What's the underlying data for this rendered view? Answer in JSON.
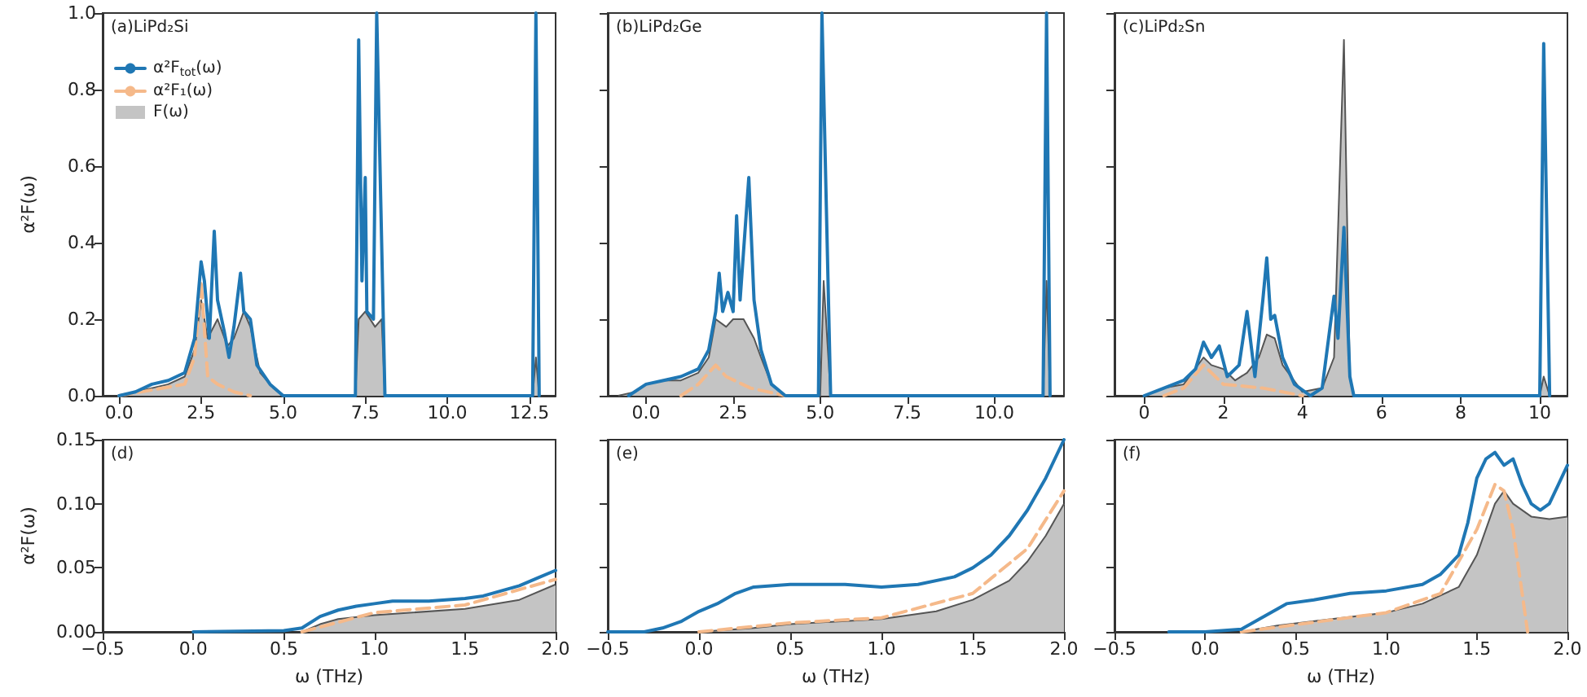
{
  "chart_data": [
    {
      "type": "line",
      "annotations": [
        "(a)LiPd₂Si"
      ],
      "ylabel": "α²F(ω)",
      "xlim": [
        -0.5,
        13.3
      ],
      "xticks": [
        {
          "value": 0,
          "label": "0.0"
        },
        {
          "value": 2.5,
          "label": "2.5"
        },
        {
          "value": 5,
          "label": "5.0"
        },
        {
          "value": 7.5,
          "label": "7.5"
        },
        {
          "value": 10,
          "label": "10.0"
        },
        {
          "value": 12.5,
          "label": "12.5"
        }
      ],
      "ylim": [
        0,
        1
      ],
      "yticks": [
        {
          "value": 0,
          "label": "0.0"
        },
        {
          "value": 0.2,
          "label": "0.2"
        },
        {
          "value": 0.4,
          "label": "0.4"
        },
        {
          "value": 0.6,
          "label": "0.6"
        },
        {
          "value": 0.8,
          "label": "0.8"
        },
        {
          "value": 1,
          "label": "1.0"
        }
      ],
      "legend": "top left",
      "series": [
        {
          "name": "α²F$_{tot}$(ω)",
          "color": "#1f77b4",
          "x": [
            0,
            0.5,
            1.0,
            1.5,
            2.0,
            2.3,
            2.5,
            2.6,
            2.75,
            2.9,
            3.0,
            3.2,
            3.35,
            3.5,
            3.7,
            3.8,
            4.0,
            4.2,
            4.6,
            5.0,
            7.2,
            7.3,
            7.4,
            7.5,
            7.55,
            7.75,
            7.85,
            8.1,
            12.6,
            12.7,
            12.8
          ],
          "values": [
            0,
            0.01,
            0.03,
            0.04,
            0.06,
            0.15,
            0.35,
            0.3,
            0.15,
            0.43,
            0.25,
            0.17,
            0.1,
            0.18,
            0.32,
            0.22,
            0.2,
            0.08,
            0.03,
            0,
            0,
            0.93,
            0.3,
            0.57,
            0.22,
            0.2,
            1.0,
            0,
            0,
            1.0,
            0
          ]
        },
        {
          "name": "α²F₁(ω)",
          "color": "#f5b98a",
          "line_style": "dashed",
          "x": [
            0,
            2.0,
            2.3,
            2.5,
            2.7,
            3.0,
            3.5,
            4.0
          ],
          "values": [
            0,
            0.03,
            0.1,
            0.3,
            0.05,
            0.03,
            0.01,
            0
          ]
        },
        {
          "name": "F(ω)",
          "type": "area",
          "color": "#c4c4c4",
          "x": [
            0,
            0.5,
            1.0,
            1.5,
            2.0,
            2.3,
            2.5,
            2.7,
            3.0,
            3.3,
            3.5,
            3.8,
            4.0,
            4.3,
            4.7,
            5.0,
            7.2,
            7.3,
            7.5,
            7.8,
            8.0,
            8.1,
            12.6,
            12.7,
            12.8
          ],
          "values": [
            0,
            0.01,
            0.02,
            0.03,
            0.05,
            0.12,
            0.25,
            0.15,
            0.2,
            0.13,
            0.15,
            0.22,
            0.18,
            0.06,
            0.02,
            0,
            0,
            0.2,
            0.22,
            0.18,
            0.2,
            0,
            0,
            0.1,
            0
          ]
        }
      ]
    },
    {
      "type": "line",
      "annotations": [
        "(b)LiPd₂Ge"
      ],
      "xlim": [
        -1.1,
        12.0
      ],
      "xticks": [
        {
          "value": 0,
          "label": "0.0"
        },
        {
          "value": 2.5,
          "label": "2.5"
        },
        {
          "value": 5,
          "label": "5.0"
        },
        {
          "value": 7.5,
          "label": "7.5"
        },
        {
          "value": 10,
          "label": "10.0"
        }
      ],
      "ylim": [
        0,
        1
      ],
      "yticks": [
        {
          "value": 0,
          "label": null
        },
        {
          "value": 0.2,
          "label": null
        },
        {
          "value": 0.4,
          "label": null
        },
        {
          "value": 0.6,
          "label": null
        },
        {
          "value": 0.8,
          "label": null
        },
        {
          "value": 1,
          "label": null
        }
      ],
      "tick_labels": "x",
      "series": [
        {
          "color": "#1f77b4",
          "x": [
            -0.5,
            0,
            0.5,
            1.0,
            1.5,
            1.8,
            2.0,
            2.1,
            2.2,
            2.35,
            2.5,
            2.6,
            2.7,
            2.95,
            3.1,
            3.3,
            3.6,
            4.0,
            4.95,
            5.05,
            5.3,
            11.4,
            11.5,
            11.6
          ],
          "values": [
            0,
            0.03,
            0.04,
            0.05,
            0.07,
            0.12,
            0.22,
            0.32,
            0.22,
            0.27,
            0.22,
            0.47,
            0.25,
            0.57,
            0.25,
            0.12,
            0.03,
            0,
            0,
            1.0,
            0,
            0,
            1.0,
            0
          ]
        },
        {
          "color": "#f5b98a",
          "line_style": "dashed",
          "x": [
            1.0,
            1.5,
            2.0,
            2.3,
            3.0,
            4.0
          ],
          "values": [
            0,
            0.03,
            0.08,
            0.05,
            0.02,
            0
          ]
        },
        {
          "type": "area",
          "color": "#c4c4c4",
          "x": [
            -0.8,
            -0.3,
            0,
            0.5,
            1.0,
            1.5,
            1.8,
            2.0,
            2.3,
            2.5,
            2.8,
            3.1,
            3.3,
            3.6,
            4.0,
            5.0,
            5.1,
            5.3,
            11.4,
            11.5,
            11.6
          ],
          "values": [
            0,
            0.01,
            0.03,
            0.04,
            0.04,
            0.06,
            0.1,
            0.2,
            0.18,
            0.2,
            0.2,
            0.15,
            0.1,
            0.03,
            0,
            0,
            0.3,
            0,
            0,
            0.3,
            0
          ]
        }
      ]
    },
    {
      "type": "line",
      "annotations": [
        "(c)LiPd₂Sn"
      ],
      "xlim": [
        -0.75,
        10.7
      ],
      "xticks": [
        0,
        2,
        4,
        6,
        8,
        10
      ],
      "ylim": [
        0,
        1
      ],
      "yticks": [
        {
          "value": 0,
          "label": null
        },
        {
          "value": 0.2,
          "label": null
        },
        {
          "value": 0.4,
          "label": null
        },
        {
          "value": 0.6,
          "label": null
        },
        {
          "value": 0.8,
          "label": null
        },
        {
          "value": 1,
          "label": null
        }
      ],
      "tick_labels": "x",
      "series": [
        {
          "color": "#1f77b4",
          "x": [
            0,
            0.5,
            1.0,
            1.3,
            1.5,
            1.7,
            1.9,
            2.1,
            2.4,
            2.6,
            2.8,
            3.0,
            3.1,
            3.2,
            3.3,
            3.5,
            3.8,
            4.2,
            4.5,
            4.8,
            4.9,
            5.05,
            5.2,
            5.3,
            10.0,
            10.1,
            10.25
          ],
          "values": [
            0,
            0.02,
            0.04,
            0.07,
            0.14,
            0.1,
            0.13,
            0.05,
            0.08,
            0.22,
            0.05,
            0.25,
            0.36,
            0.2,
            0.21,
            0.1,
            0.03,
            0,
            0.02,
            0.26,
            0.15,
            0.44,
            0.05,
            0,
            0,
            0.92,
            0
          ]
        },
        {
          "color": "#f5b98a",
          "line_style": "dashed",
          "x": [
            0.5,
            1.0,
            1.5,
            2.0,
            3.0,
            4.0
          ],
          "values": [
            0,
            0.02,
            0.08,
            0.03,
            0.02,
            0
          ]
        },
        {
          "type": "area",
          "color": "#c4c4c4",
          "x": [
            0,
            0.5,
            1.0,
            1.5,
            1.7,
            2.0,
            2.3,
            2.6,
            2.9,
            3.1,
            3.3,
            3.5,
            4.0,
            4.5,
            4.8,
            5.05,
            5.2,
            5.3,
            10.0,
            10.1,
            10.25
          ],
          "values": [
            0,
            0.02,
            0.03,
            0.1,
            0.08,
            0.07,
            0.04,
            0.06,
            0.1,
            0.16,
            0.15,
            0.08,
            0.01,
            0.02,
            0.1,
            0.93,
            0.05,
            0,
            0,
            0.05,
            0
          ]
        }
      ]
    },
    {
      "type": "line",
      "annotations": [
        "(d)"
      ],
      "ylabel": "α²F(ω)",
      "xlabel": "ω (THz)",
      "xlim": [
        -0.5,
        2.0
      ],
      "xticks": [
        {
          "value": -0.5,
          "label": "−0.5"
        },
        {
          "value": 0,
          "label": "0.0"
        },
        {
          "value": 0.5,
          "label": "0.5"
        },
        {
          "value": 1,
          "label": "1.0"
        },
        {
          "value": 1.5,
          "label": "1.5"
        },
        {
          "value": 2,
          "label": "2.0"
        }
      ],
      "ylim": [
        0,
        0.15
      ],
      "yticks": [
        {
          "value": 0,
          "label": "0.00"
        },
        {
          "value": 0.05,
          "label": "0.05"
        },
        {
          "value": 0.1,
          "label": "0.10"
        },
        {
          "value": 0.15,
          "label": "0.15"
        }
      ],
      "series": [
        {
          "color": "#1f77b4",
          "x": [
            0,
            0.5,
            0.6,
            0.7,
            0.8,
            0.9,
            1.0,
            1.1,
            1.3,
            1.5,
            1.6,
            1.7,
            1.8,
            1.9,
            2.0
          ],
          "values": [
            0,
            0.001,
            0.003,
            0.012,
            0.017,
            0.02,
            0.022,
            0.024,
            0.024,
            0.026,
            0.028,
            0.032,
            0.036,
            0.042,
            0.048
          ]
        },
        {
          "color": "#f5b98a",
          "line_style": "dashed",
          "x": [
            0.6,
            1.0,
            1.5,
            2.0
          ],
          "values": [
            0,
            0.015,
            0.021,
            0.041
          ]
        },
        {
          "type": "area",
          "color": "#c4c4c4",
          "x": [
            0.6,
            0.7,
            0.8,
            1.0,
            1.5,
            1.8,
            2.0
          ],
          "values": [
            0,
            0.006,
            0.01,
            0.013,
            0.018,
            0.025,
            0.037
          ]
        }
      ]
    },
    {
      "type": "line",
      "annotations": [
        "(e)"
      ],
      "xlabel": "ω (THz)",
      "xlim": [
        -0.5,
        2.0
      ],
      "xticks": [
        {
          "value": -0.5,
          "label": "−0.5"
        },
        {
          "value": 0,
          "label": "0.0"
        },
        {
          "value": 0.5,
          "label": "0.5"
        },
        {
          "value": 1,
          "label": "1.0"
        },
        {
          "value": 1.5,
          "label": "1.5"
        },
        {
          "value": 2,
          "label": "2.0"
        }
      ],
      "ylim": [
        0,
        0.15
      ],
      "yticks": [
        {
          "value": 0,
          "label": null
        },
        {
          "value": 0.05,
          "label": null
        },
        {
          "value": 0.1,
          "label": null
        },
        {
          "value": 0.15,
          "label": null
        }
      ],
      "tick_labels": "x",
      "series": [
        {
          "color": "#1f77b4",
          "x": [
            -0.5,
            -0.3,
            -0.2,
            -0.1,
            0,
            0.1,
            0.2,
            0.3,
            0.5,
            0.8,
            1.0,
            1.2,
            1.4,
            1.5,
            1.6,
            1.7,
            1.8,
            1.9,
            2.0
          ],
          "values": [
            0,
            0,
            0.003,
            0.008,
            0.016,
            0.022,
            0.03,
            0.035,
            0.037,
            0.037,
            0.035,
            0.037,
            0.043,
            0.05,
            0.06,
            0.075,
            0.095,
            0.12,
            0.15
          ]
        },
        {
          "color": "#f5b98a",
          "line_style": "dashed",
          "x": [
            0,
            0.5,
            1.0,
            1.5,
            1.8,
            2.0
          ],
          "values": [
            0,
            0.007,
            0.011,
            0.03,
            0.065,
            0.11
          ]
        },
        {
          "type": "area",
          "color": "#c4c4c4",
          "x": [
            0,
            0.3,
            0.5,
            1.0,
            1.3,
            1.5,
            1.7,
            1.8,
            1.9,
            2.0
          ],
          "values": [
            0,
            0.003,
            0.006,
            0.01,
            0.016,
            0.025,
            0.04,
            0.055,
            0.075,
            0.1
          ]
        }
      ]
    },
    {
      "type": "line",
      "annotations": [
        "(f)"
      ],
      "xlabel": "ω (THz)",
      "xlim": [
        -0.5,
        2.0
      ],
      "xticks": [
        {
          "value": -0.5,
          "label": "−0.5"
        },
        {
          "value": 0,
          "label": "0.0"
        },
        {
          "value": 0.5,
          "label": "0.5"
        },
        {
          "value": 1,
          "label": "1.0"
        },
        {
          "value": 1.5,
          "label": "1.5"
        },
        {
          "value": 2,
          "label": "2.0"
        }
      ],
      "ylim": [
        0,
        0.15
      ],
      "yticks": [
        {
          "value": 0,
          "label": null
        },
        {
          "value": 0.05,
          "label": null
        },
        {
          "value": 0.1,
          "label": null
        },
        {
          "value": 0.15,
          "label": null
        }
      ],
      "tick_labels": "x",
      "series": [
        {
          "color": "#1f77b4",
          "x": [
            -0.2,
            0,
            0.2,
            0.3,
            0.4,
            0.45,
            0.6,
            0.8,
            1.0,
            1.2,
            1.3,
            1.4,
            1.45,
            1.5,
            1.55,
            1.6,
            1.65,
            1.7,
            1.75,
            1.8,
            1.85,
            1.9,
            1.95,
            2.0
          ],
          "values": [
            0,
            0,
            0.002,
            0.01,
            0.018,
            0.022,
            0.025,
            0.03,
            0.032,
            0.037,
            0.045,
            0.06,
            0.085,
            0.12,
            0.135,
            0.14,
            0.13,
            0.135,
            0.115,
            0.1,
            0.095,
            0.1,
            0.115,
            0.13
          ]
        },
        {
          "color": "#f5b98a",
          "line_style": "dashed",
          "x": [
            0.2,
            1.0,
            1.3,
            1.5,
            1.6,
            1.65,
            1.7,
            1.75,
            1.78
          ],
          "values": [
            0,
            0.015,
            0.03,
            0.08,
            0.115,
            0.11,
            0.08,
            0.03,
            0
          ]
        },
        {
          "type": "area",
          "color": "#c4c4c4",
          "x": [
            0.2,
            0.4,
            0.7,
            1.0,
            1.2,
            1.4,
            1.5,
            1.6,
            1.65,
            1.7,
            1.8,
            1.9,
            2.0
          ],
          "values": [
            0,
            0.005,
            0.01,
            0.015,
            0.022,
            0.035,
            0.06,
            0.1,
            0.11,
            0.1,
            0.09,
            0.088,
            0.09
          ]
        }
      ]
    }
  ]
}
